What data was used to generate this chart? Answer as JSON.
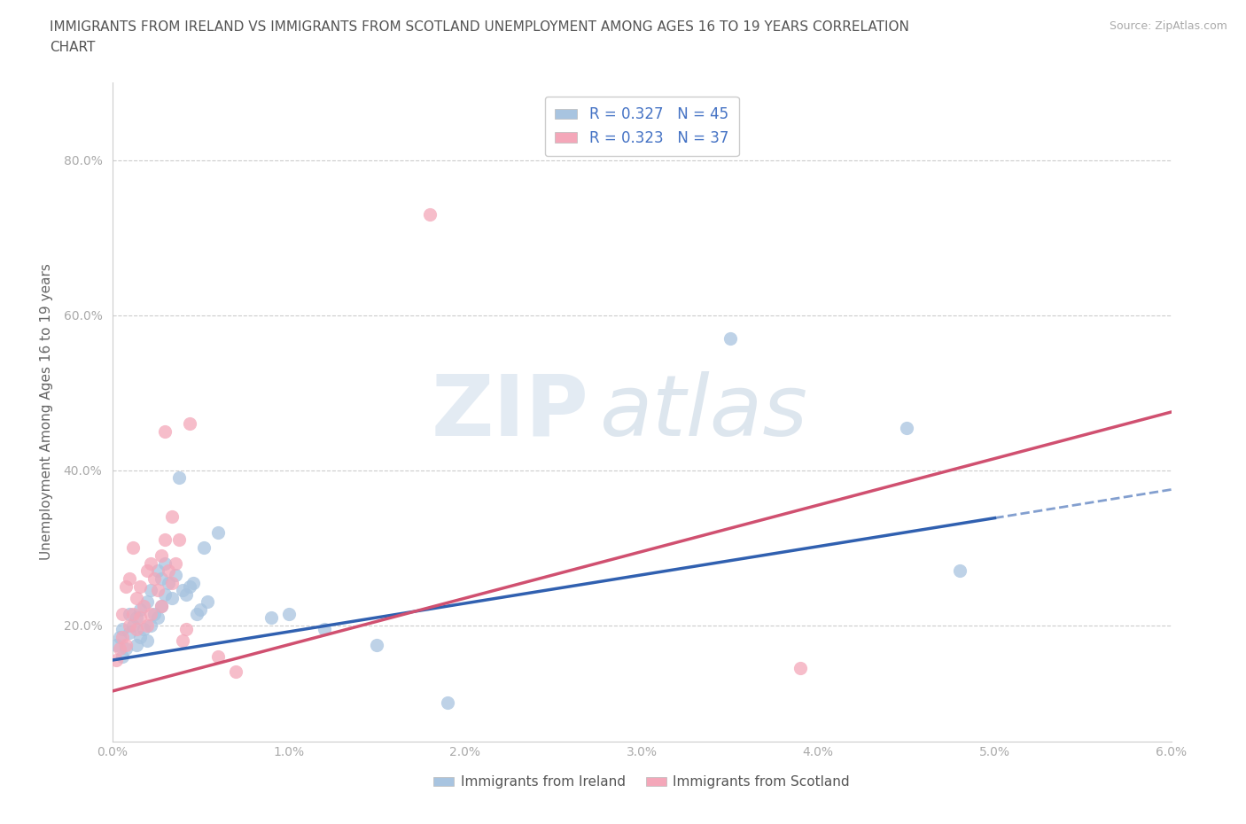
{
  "title_line1": "IMMIGRANTS FROM IRELAND VS IMMIGRANTS FROM SCOTLAND UNEMPLOYMENT AMONG AGES 16 TO 19 YEARS CORRELATION",
  "title_line2": "CHART",
  "source": "Source: ZipAtlas.com",
  "xlabel": "",
  "ylabel": "Unemployment Among Ages 16 to 19 years",
  "xlim": [
    0.0,
    0.06
  ],
  "ylim": [
    0.05,
    0.9
  ],
  "xticks": [
    0.0,
    0.01,
    0.02,
    0.03,
    0.04,
    0.05,
    0.06
  ],
  "yticks": [
    0.2,
    0.4,
    0.6,
    0.8
  ],
  "xtick_labels": [
    "0.0%",
    "1.0%",
    "2.0%",
    "3.0%",
    "4.0%",
    "5.0%",
    "6.0%"
  ],
  "ytick_labels": [
    "20.0%",
    "40.0%",
    "60.0%",
    "80.0%"
  ],
  "R_ireland": 0.327,
  "N_ireland": 45,
  "R_scotland": 0.323,
  "N_scotland": 37,
  "ireland_color": "#a8c4e0",
  "scotland_color": "#f4a7b9",
  "ireland_line_color": "#3060b0",
  "scotland_line_color": "#d05070",
  "ireland_scatter": [
    [
      0.0002,
      0.175
    ],
    [
      0.0004,
      0.185
    ],
    [
      0.0006,
      0.16
    ],
    [
      0.0006,
      0.195
    ],
    [
      0.0008,
      0.17
    ],
    [
      0.001,
      0.19
    ],
    [
      0.001,
      0.215
    ],
    [
      0.0012,
      0.2
    ],
    [
      0.0014,
      0.175
    ],
    [
      0.0014,
      0.21
    ],
    [
      0.0016,
      0.185
    ],
    [
      0.0016,
      0.22
    ],
    [
      0.0018,
      0.195
    ],
    [
      0.002,
      0.18
    ],
    [
      0.002,
      0.23
    ],
    [
      0.0022,
      0.2
    ],
    [
      0.0022,
      0.245
    ],
    [
      0.0024,
      0.215
    ],
    [
      0.0026,
      0.21
    ],
    [
      0.0026,
      0.27
    ],
    [
      0.0028,
      0.225
    ],
    [
      0.0028,
      0.26
    ],
    [
      0.003,
      0.24
    ],
    [
      0.003,
      0.28
    ],
    [
      0.0032,
      0.255
    ],
    [
      0.0034,
      0.235
    ],
    [
      0.0036,
      0.265
    ],
    [
      0.0038,
      0.39
    ],
    [
      0.004,
      0.245
    ],
    [
      0.0042,
      0.24
    ],
    [
      0.0044,
      0.25
    ],
    [
      0.0046,
      0.255
    ],
    [
      0.0048,
      0.215
    ],
    [
      0.005,
      0.22
    ],
    [
      0.0052,
      0.3
    ],
    [
      0.0054,
      0.23
    ],
    [
      0.006,
      0.32
    ],
    [
      0.009,
      0.21
    ],
    [
      0.01,
      0.215
    ],
    [
      0.012,
      0.195
    ],
    [
      0.015,
      0.175
    ],
    [
      0.019,
      0.1
    ],
    [
      0.035,
      0.57
    ],
    [
      0.045,
      0.455
    ],
    [
      0.048,
      0.27
    ]
  ],
  "scotland_scatter": [
    [
      0.0002,
      0.155
    ],
    [
      0.0004,
      0.17
    ],
    [
      0.0006,
      0.185
    ],
    [
      0.0006,
      0.215
    ],
    [
      0.0008,
      0.175
    ],
    [
      0.0008,
      0.25
    ],
    [
      0.001,
      0.2
    ],
    [
      0.001,
      0.26
    ],
    [
      0.0012,
      0.215
    ],
    [
      0.0012,
      0.3
    ],
    [
      0.0014,
      0.195
    ],
    [
      0.0014,
      0.235
    ],
    [
      0.0016,
      0.21
    ],
    [
      0.0016,
      0.25
    ],
    [
      0.0018,
      0.225
    ],
    [
      0.002,
      0.2
    ],
    [
      0.002,
      0.27
    ],
    [
      0.0022,
      0.215
    ],
    [
      0.0022,
      0.28
    ],
    [
      0.0024,
      0.26
    ],
    [
      0.0026,
      0.245
    ],
    [
      0.0028,
      0.225
    ],
    [
      0.0028,
      0.29
    ],
    [
      0.003,
      0.31
    ],
    [
      0.003,
      0.45
    ],
    [
      0.0032,
      0.27
    ],
    [
      0.0034,
      0.255
    ],
    [
      0.0034,
      0.34
    ],
    [
      0.0036,
      0.28
    ],
    [
      0.0038,
      0.31
    ],
    [
      0.004,
      0.18
    ],
    [
      0.0042,
      0.195
    ],
    [
      0.0044,
      0.46
    ],
    [
      0.006,
      0.16
    ],
    [
      0.007,
      0.14
    ],
    [
      0.039,
      0.145
    ],
    [
      0.018,
      0.73
    ]
  ],
  "ireland_trend": [
    0.0,
    0.155,
    0.06,
    0.375
  ],
  "scotland_trend": [
    0.0,
    0.115,
    0.06,
    0.475
  ],
  "ireland_trend_dashed_start": 0.05,
  "watermark_zip": "ZIP",
  "watermark_atlas": "atlas",
  "background_color": "#ffffff",
  "grid_color": "#cccccc",
  "title_color": "#555555",
  "axis_label_color": "#666666",
  "tick_label_color": "#5588cc",
  "source_color": "#aaaaaa",
  "legend_r_n_color": "#4472c4",
  "bottom_legend_color": "#555555"
}
